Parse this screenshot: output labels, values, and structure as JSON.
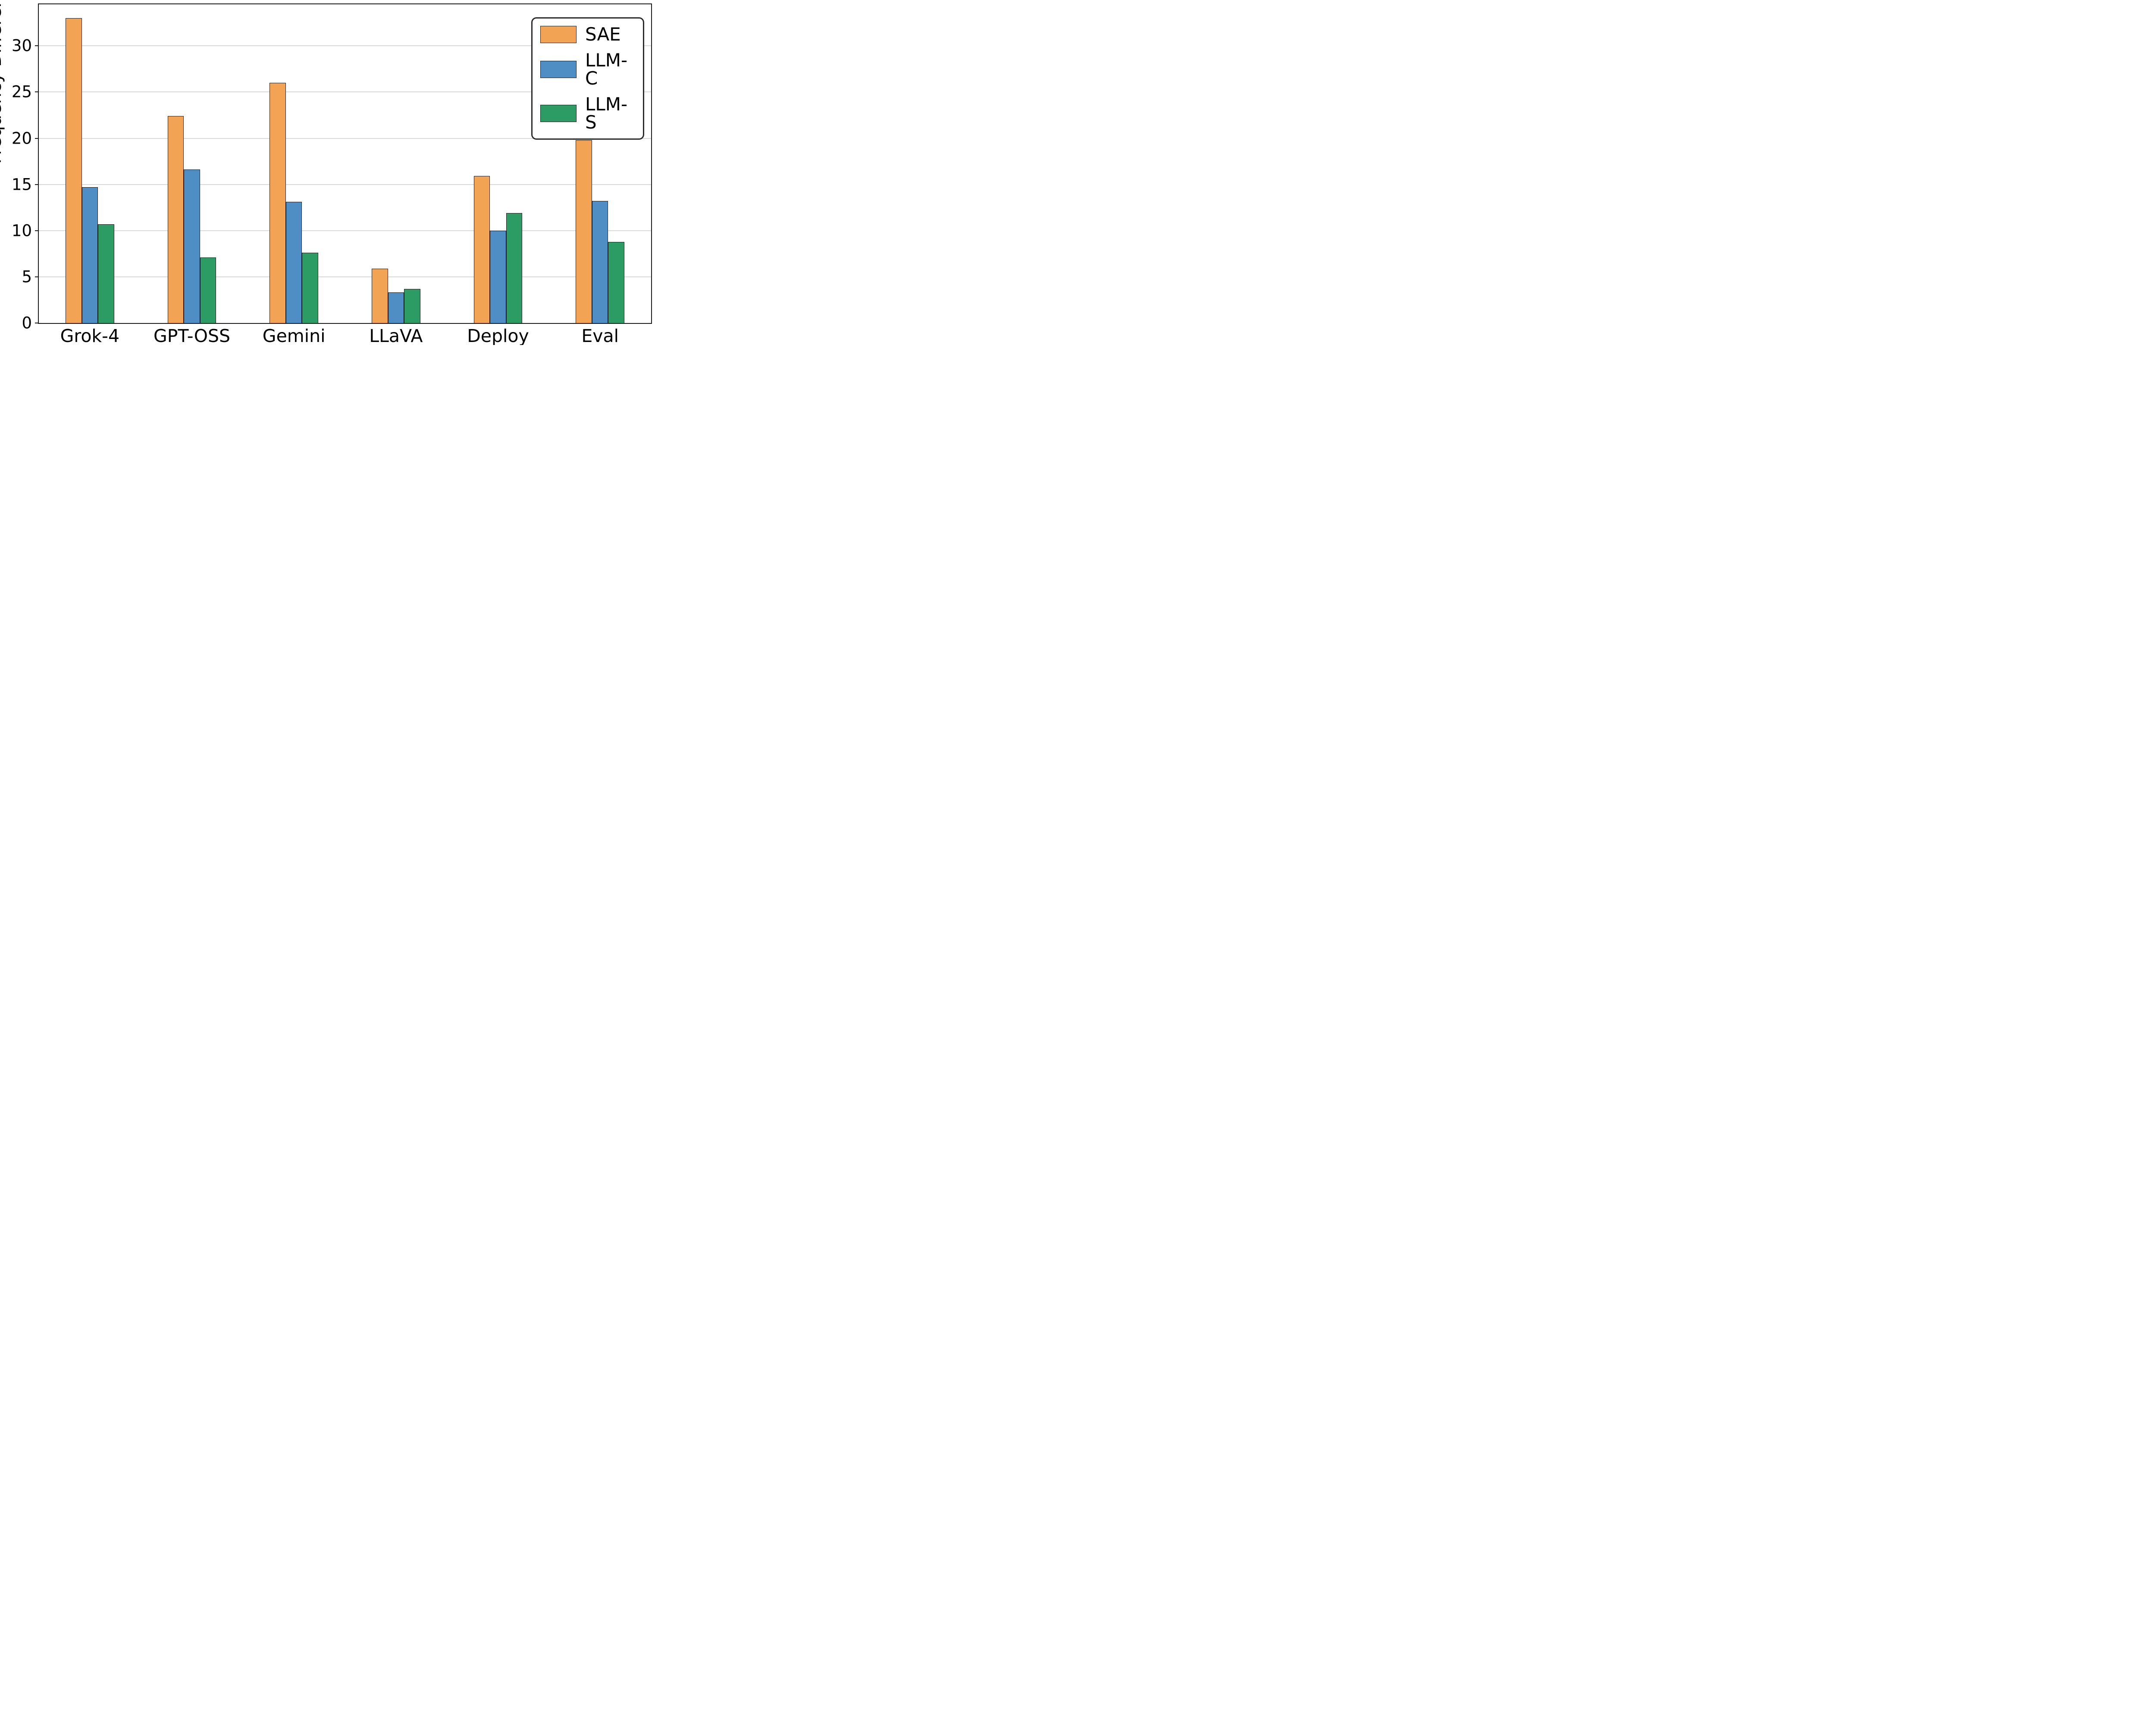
{
  "chart_data": {
    "type": "bar",
    "title": "",
    "xlabel": "",
    "ylabel": "Frequency Difference (%)",
    "categories": [
      "Grok-4",
      "GPT-OSS",
      "Gemini",
      "LLaVA",
      "Deploy",
      "Eval"
    ],
    "series": [
      {
        "name": "SAE",
        "color": "#F2A354",
        "values": [
          33.0,
          22.4,
          26.0,
          5.9,
          15.9,
          19.8
        ]
      },
      {
        "name": "LLM-C",
        "color": "#4E8EC5",
        "values": [
          14.7,
          16.6,
          13.1,
          3.3,
          10.0,
          13.2
        ]
      },
      {
        "name": "LLM-S",
        "color": "#2D9C64",
        "values": [
          10.7,
          7.1,
          7.6,
          3.7,
          11.9,
          8.8
        ]
      }
    ],
    "yticks": [
      0,
      5,
      10,
      15,
      20,
      25,
      30
    ],
    "ylim": [
      0,
      34.5
    ],
    "grid": true,
    "grid_color": "#d9d9d9",
    "bar_edge_color": "#1a1a1a",
    "axis_color": "#1a1a1a",
    "legend_position": "upper right"
  }
}
